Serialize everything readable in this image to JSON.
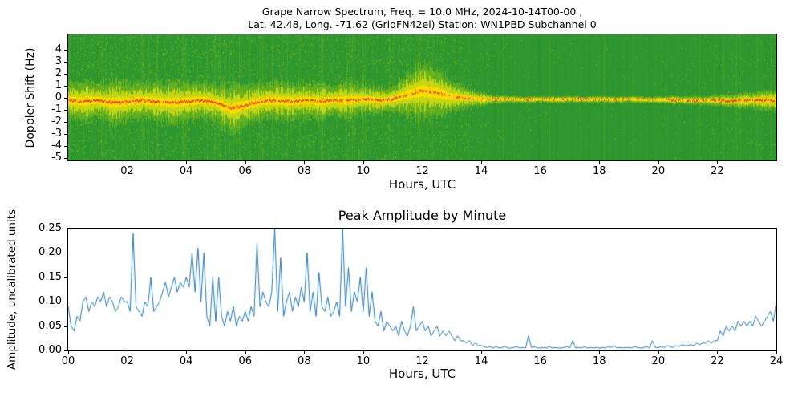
{
  "figure_background": "#ffffff",
  "chart_data": [
    {
      "type": "heatmap",
      "subtype": "doppler-spectrogram",
      "title_line1": "Grape Narrow Spectrum, Freq. = 10.0 MHz, 2024-10-14T00-00 ,",
      "title_line2": "Lat.  42.48, Long. -71.62 (GridFN42el) Station: WN1PBD Subchannel 0",
      "xlabel": "Hours, UTC",
      "ylabel": "Doppler Shift (Hz)",
      "xlim": [
        0,
        24
      ],
      "ylim": [
        -5.2,
        5.3
      ],
      "xtick_values": [
        2,
        4,
        6,
        8,
        10,
        12,
        14,
        16,
        18,
        20,
        22
      ],
      "xtick_labels": [
        "02",
        "04",
        "06",
        "08",
        "10",
        "12",
        "14",
        "16",
        "18",
        "20",
        "22"
      ],
      "ytick_values": [
        4,
        3,
        2,
        1,
        0,
        -1,
        -2,
        -3,
        -4,
        -5
      ],
      "ytick_labels": [
        "4",
        "3",
        "2",
        "1",
        "0",
        "-1",
        "-2",
        "-3",
        "-4",
        "-5"
      ],
      "colors": {
        "background": "#2f992f",
        "speckle": "#b8d818",
        "band_outer": "#96c814",
        "band_mid": "#dce010",
        "band_core": "#ffdc00",
        "trace": "#e63214"
      },
      "time_bins_hr": [
        0,
        0.5,
        1,
        1.5,
        2,
        2.5,
        3,
        3.5,
        4,
        4.5,
        5,
        5.5,
        6,
        6.5,
        7,
        7.5,
        8,
        8.5,
        9,
        9.5,
        10,
        10.5,
        11,
        11.5,
        12,
        12.5,
        13,
        13.5,
        14,
        14.5,
        15,
        15.5,
        16,
        16.5,
        17,
        17.5,
        18,
        18.5,
        19,
        19.5,
        20,
        20.5,
        21,
        21.5,
        22,
        22.5,
        23,
        23.5,
        24
      ],
      "band_center_hz": [
        -0.2,
        -0.3,
        -0.2,
        -0.4,
        -0.3,
        -0.2,
        -0.3,
        -0.4,
        -0.3,
        -0.2,
        -0.4,
        -0.9,
        -0.6,
        -0.3,
        -0.2,
        -0.3,
        -0.2,
        -0.3,
        -0.2,
        -0.2,
        -0.1,
        -0.2,
        -0.1,
        0.3,
        0.6,
        0.4,
        0.1,
        0.0,
        -0.1,
        -0.1,
        -0.1,
        -0.15,
        -0.1,
        -0.15,
        -0.1,
        -0.15,
        -0.1,
        -0.15,
        -0.1,
        -0.15,
        -0.15,
        -0.15,
        -0.2,
        -0.2,
        -0.2,
        -0.25,
        -0.2,
        -0.2,
        -0.2
      ],
      "band_halfwidth_hz": [
        1.5,
        1.6,
        1.4,
        1.7,
        1.5,
        1.4,
        1.5,
        1.6,
        1.5,
        1.4,
        1.6,
        1.9,
        1.6,
        1.4,
        1.5,
        1.4,
        1.5,
        1.4,
        1.3,
        1.4,
        1.2,
        1.1,
        1.0,
        1.8,
        2.3,
        1.9,
        1.3,
        0.8,
        0.5,
        0.3,
        0.25,
        0.25,
        0.25,
        0.25,
        0.25,
        0.25,
        0.25,
        0.25,
        0.25,
        0.25,
        0.25,
        0.3,
        0.3,
        0.35,
        0.4,
        0.5,
        0.6,
        0.7,
        0.8
      ],
      "band_intensity": [
        0.95,
        0.9,
        0.9,
        0.95,
        0.9,
        0.85,
        0.9,
        0.9,
        0.9,
        0.85,
        0.9,
        0.9,
        0.85,
        0.8,
        0.8,
        0.75,
        0.8,
        0.75,
        0.7,
        0.7,
        0.65,
        0.6,
        0.6,
        0.7,
        0.75,
        0.65,
        0.5,
        0.4,
        0.35,
        0.3,
        0.3,
        0.3,
        0.28,
        0.28,
        0.28,
        0.25,
        0.25,
        0.25,
        0.25,
        0.25,
        0.3,
        0.35,
        0.4,
        0.5,
        0.6,
        0.65,
        0.7,
        0.7,
        0.7
      ],
      "noise_density": [
        0.8,
        0.85,
        0.8,
        0.9,
        0.85,
        0.8,
        0.85,
        0.9,
        0.85,
        0.8,
        0.85,
        0.9,
        0.8,
        0.75,
        0.8,
        0.75,
        0.8,
        0.75,
        0.8,
        0.85,
        0.75,
        0.7,
        0.75,
        0.85,
        0.8,
        0.75,
        0.6,
        0.45,
        0.3,
        0.2,
        0.15,
        0.15,
        0.12,
        0.12,
        0.12,
        0.1,
        0.1,
        0.1,
        0.1,
        0.1,
        0.12,
        0.15,
        0.18,
        0.2,
        0.25,
        0.3,
        0.3,
        0.35,
        0.35
      ]
    },
    {
      "type": "line",
      "title": "Peak Amplitude by Minute",
      "xlabel": "Hours, UTC",
      "ylabel": "Amplitude, uncalibrated units",
      "xlim": [
        0,
        24
      ],
      "ylim": [
        0,
        0.25
      ],
      "xtick_values": [
        0,
        2,
        4,
        6,
        8,
        10,
        12,
        14,
        16,
        18,
        20,
        22,
        24
      ],
      "xtick_labels": [
        "00",
        "02",
        "04",
        "06",
        "08",
        "10",
        "12",
        "14",
        "16",
        "18",
        "20",
        "22",
        "24"
      ],
      "ytick_values": [
        0,
        0.05,
        0.1,
        0.15,
        0.2,
        0.25
      ],
      "ytick_labels": [
        "0.00",
        "0.05",
        "0.10",
        "0.15",
        "0.20",
        "0.25"
      ],
      "line_color": "#1f77b4",
      "x_start_hr": 0,
      "x_step_hr": 0.1,
      "values": [
        0.09,
        0.05,
        0.04,
        0.07,
        0.06,
        0.1,
        0.11,
        0.08,
        0.1,
        0.09,
        0.11,
        0.1,
        0.12,
        0.09,
        0.11,
        0.1,
        0.08,
        0.09,
        0.11,
        0.1,
        0.1,
        0.08,
        0.24,
        0.09,
        0.08,
        0.07,
        0.1,
        0.09,
        0.15,
        0.08,
        0.09,
        0.1,
        0.12,
        0.14,
        0.11,
        0.13,
        0.15,
        0.12,
        0.14,
        0.13,
        0.15,
        0.13,
        0.2,
        0.12,
        0.21,
        0.1,
        0.2,
        0.07,
        0.05,
        0.15,
        0.06,
        0.15,
        0.07,
        0.05,
        0.08,
        0.06,
        0.09,
        0.05,
        0.07,
        0.06,
        0.08,
        0.06,
        0.09,
        0.07,
        0.22,
        0.09,
        0.12,
        0.1,
        0.09,
        0.12,
        0.26,
        0.08,
        0.19,
        0.07,
        0.1,
        0.12,
        0.08,
        0.11,
        0.09,
        0.13,
        0.1,
        0.2,
        0.08,
        0.12,
        0.07,
        0.16,
        0.09,
        0.08,
        0.11,
        0.07,
        0.08,
        0.1,
        0.07,
        0.26,
        0.09,
        0.17,
        0.08,
        0.12,
        0.1,
        0.15,
        0.08,
        0.17,
        0.07,
        0.12,
        0.06,
        0.05,
        0.08,
        0.04,
        0.06,
        0.05,
        0.04,
        0.05,
        0.03,
        0.06,
        0.04,
        0.03,
        0.05,
        0.09,
        0.04,
        0.05,
        0.06,
        0.04,
        0.05,
        0.03,
        0.04,
        0.05,
        0.03,
        0.04,
        0.03,
        0.04,
        0.03,
        0.02,
        0.03,
        0.02,
        0.02,
        0.015,
        0.02,
        0.01,
        0.015,
        0.01,
        0.01,
        0.008,
        0.006,
        0.008,
        0.005,
        0.008,
        0.005,
        0.006,
        0.008,
        0.005,
        0.005,
        0.006,
        0.008,
        0.005,
        0.006,
        0.005,
        0.03,
        0.006,
        0.008,
        0.005,
        0.005,
        0.006,
        0.005,
        0.008,
        0.005,
        0.006,
        0.005,
        0.005,
        0.006,
        0.008,
        0.005,
        0.02,
        0.005,
        0.006,
        0.005,
        0.008,
        0.005,
        0.006,
        0.005,
        0.006,
        0.005,
        0.006,
        0.005,
        0.008,
        0.006,
        0.01,
        0.005,
        0.006,
        0.005,
        0.006,
        0.006,
        0.005,
        0.008,
        0.006,
        0.005,
        0.006,
        0.008,
        0.005,
        0.02,
        0.006,
        0.006,
        0.008,
        0.006,
        0.01,
        0.008,
        0.006,
        0.01,
        0.008,
        0.012,
        0.01,
        0.01,
        0.012,
        0.01,
        0.015,
        0.012,
        0.015,
        0.015,
        0.02,
        0.015,
        0.02,
        0.02,
        0.04,
        0.03,
        0.05,
        0.04,
        0.05,
        0.04,
        0.06,
        0.05,
        0.06,
        0.05,
        0.06,
        0.05,
        0.07,
        0.06,
        0.05,
        0.06,
        0.07,
        0.08,
        0.06,
        0.1
      ]
    }
  ]
}
